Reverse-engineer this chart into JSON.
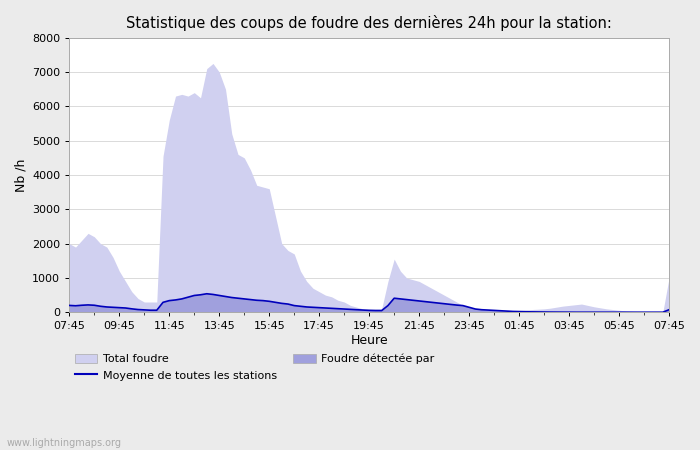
{
  "title": "Statistique des coups de foudre des dernières 24h pour la station:",
  "xlabel": "Heure",
  "ylabel": "Nb /h",
  "ylim": [
    0,
    8000
  ],
  "yticks": [
    0,
    1000,
    2000,
    3000,
    4000,
    5000,
    6000,
    7000,
    8000
  ],
  "xtick_labels": [
    "07:45",
    "09:45",
    "11:45",
    "13:45",
    "15:45",
    "17:45",
    "19:45",
    "21:45",
    "23:45",
    "01:45",
    "03:45",
    "05:45",
    "07:45"
  ],
  "bg_color": "#ebebeb",
  "plot_bg_color": "#ffffff",
  "fill_color_total": "#d0d0f0",
  "fill_color_detected": "#a0a0dd",
  "line_color": "#0000bb",
  "watermark": "www.lightningmaps.org",
  "total_foudre": [
    2000,
    1900,
    2100,
    2300,
    2200,
    2000,
    1900,
    1600,
    1200,
    900,
    600,
    400,
    300,
    300,
    300,
    4550,
    5600,
    6300,
    6350,
    6300,
    6400,
    6250,
    7100,
    7250,
    7000,
    6500,
    5200,
    4600,
    4500,
    4150,
    3700,
    3650,
    3600,
    2800,
    2000,
    1800,
    1700,
    1200,
    900,
    700,
    600,
    500,
    450,
    350,
    300,
    200,
    150,
    100,
    100,
    100,
    100,
    900,
    1550,
    1200,
    1000,
    950,
    900,
    800,
    700,
    600,
    500,
    400,
    300,
    200,
    150,
    100,
    80,
    70,
    60,
    50,
    40,
    50,
    60,
    70,
    80,
    90,
    100,
    120,
    150,
    180,
    200,
    220,
    240,
    200,
    160,
    130,
    100,
    80,
    60,
    40,
    30,
    20,
    15,
    10,
    8,
    6,
    1000
  ],
  "detected": [
    200,
    190,
    210,
    220,
    210,
    180,
    160,
    150,
    140,
    130,
    100,
    80,
    70,
    60,
    60,
    300,
    350,
    370,
    400,
    450,
    500,
    520,
    550,
    530,
    500,
    470,
    440,
    420,
    400,
    380,
    360,
    350,
    330,
    300,
    270,
    250,
    200,
    180,
    160,
    150,
    140,
    130,
    120,
    110,
    100,
    90,
    80,
    70,
    60,
    55,
    55,
    200,
    420,
    400,
    380,
    360,
    340,
    320,
    300,
    280,
    260,
    240,
    220,
    200,
    150,
    100,
    80,
    70,
    60,
    50,
    40,
    30,
    25,
    20,
    15,
    12,
    10,
    8,
    6,
    5,
    4,
    3,
    2,
    2,
    2,
    2,
    2,
    2,
    2,
    2,
    2,
    2,
    2,
    2,
    2,
    2,
    80
  ],
  "moyenne": [
    200,
    190,
    205,
    215,
    205,
    175,
    155,
    145,
    135,
    125,
    100,
    80,
    70,
    60,
    60,
    290,
    340,
    360,
    390,
    440,
    490,
    510,
    540,
    520,
    490,
    460,
    430,
    410,
    390,
    370,
    350,
    340,
    320,
    290,
    260,
    240,
    195,
    175,
    155,
    145,
    135,
    125,
    115,
    105,
    95,
    85,
    75,
    65,
    55,
    50,
    50,
    195,
    410,
    390,
    370,
    350,
    330,
    310,
    290,
    270,
    250,
    230,
    210,
    195,
    145,
    95,
    75,
    65,
    55,
    45,
    35,
    25,
    20,
    15,
    12,
    10,
    8,
    6,
    5,
    4,
    3,
    2,
    2,
    2,
    2,
    2,
    2,
    2,
    2,
    2,
    2,
    2,
    2,
    2,
    2,
    2,
    75
  ]
}
